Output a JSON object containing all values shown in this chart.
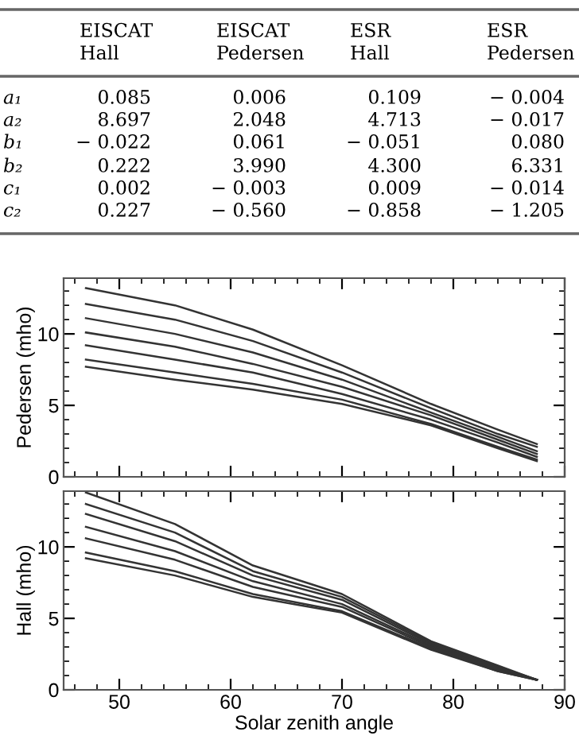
{
  "chart_data": [
    {
      "type": "other",
      "categories": [
        "EISCAT\nHall",
        "EISCAT\nPedersen",
        "ESR\nHall",
        "ESR\nPedersen"
      ],
      "y_categories": [
        "a₁",
        "a₂",
        "b₁",
        "b₂",
        "c₁",
        "c₂"
      ],
      "cell_labels": [
        [
          "0.085",
          "0.006",
          "0.109",
          "− 0.004"
        ],
        [
          "8.697",
          "2.048",
          "4.713",
          "− 0.017"
        ],
        [
          "− 0.022",
          "0.061",
          "− 0.051",
          "0.080"
        ],
        [
          "0.222",
          "3.990",
          "4.300",
          "6.331"
        ],
        [
          "0.002",
          "− 0.003",
          "0.009",
          "− 0.014"
        ],
        [
          "0.227",
          "− 0.560",
          "− 0.858",
          "− 1.205"
        ]
      ]
    },
    {
      "type": "line",
      "ylabel": "Pedersen (mho)",
      "x": [
        47,
        55,
        62,
        70,
        78,
        84,
        87.5
      ],
      "xlim": [
        45,
        90
      ],
      "xticks": [
        50,
        60,
        70,
        80,
        90
      ],
      "ylim": [
        0,
        13.9
      ],
      "yticks": [
        0,
        5,
        10
      ],
      "tick_labels": "y",
      "grid": false,
      "series": [
        {
          "color": "#333333",
          "values": [
            13.2,
            12.0,
            10.3,
            7.8,
            5.1,
            3.3,
            2.3
          ]
        },
        {
          "color": "#333333",
          "values": [
            12.1,
            11.0,
            9.5,
            7.3,
            4.8,
            3.0,
            2.1
          ]
        },
        {
          "color": "#333333",
          "values": [
            11.1,
            10.0,
            8.7,
            6.8,
            4.5,
            2.8,
            1.8
          ]
        },
        {
          "color": "#333333",
          "values": [
            10.1,
            9.1,
            7.9,
            6.3,
            4.3,
            2.6,
            1.6
          ]
        },
        {
          "color": "#333333",
          "values": [
            9.2,
            8.2,
            7.3,
            5.8,
            4.0,
            2.4,
            1.4
          ]
        },
        {
          "color": "#333333",
          "values": [
            8.2,
            7.3,
            6.5,
            5.4,
            3.7,
            2.1,
            1.2
          ]
        },
        {
          "color": "#333333",
          "values": [
            7.7,
            6.8,
            6.1,
            5.1,
            3.6,
            2.0,
            1.1
          ]
        }
      ]
    },
    {
      "type": "line",
      "ylabel": "Hall (mho)",
      "xlabel": "Solar zenith angle",
      "x": [
        47,
        55,
        62,
        70,
        78,
        84,
        87.5
      ],
      "xlim": [
        45,
        90
      ],
      "xticks": [
        50,
        60,
        70,
        80,
        90
      ],
      "ylim": [
        0,
        13.9
      ],
      "yticks": [
        0,
        5,
        10
      ],
      "grid": false,
      "series": [
        {
          "color": "#333333",
          "values": [
            13.8,
            11.6,
            8.7,
            6.7,
            3.4,
            1.7,
            0.7
          ]
        },
        {
          "color": "#333333",
          "values": [
            13.0,
            11.0,
            8.3,
            6.5,
            3.3,
            1.6,
            0.7
          ]
        },
        {
          "color": "#333333",
          "values": [
            12.3,
            10.4,
            8.0,
            6.3,
            3.2,
            1.6,
            0.7
          ]
        },
        {
          "color": "#333333",
          "values": [
            11.4,
            9.7,
            7.6,
            6.0,
            3.1,
            1.5,
            0.7
          ]
        },
        {
          "color": "#333333",
          "values": [
            10.6,
            9.1,
            7.2,
            5.8,
            3.0,
            1.4,
            0.7
          ]
        },
        {
          "color": "#333333",
          "values": [
            9.6,
            8.3,
            6.7,
            5.5,
            2.9,
            1.3,
            0.7
          ]
        },
        {
          "color": "#333333",
          "values": [
            9.2,
            8.0,
            6.5,
            5.4,
            2.8,
            1.3,
            0.7
          ]
        }
      ]
    }
  ]
}
